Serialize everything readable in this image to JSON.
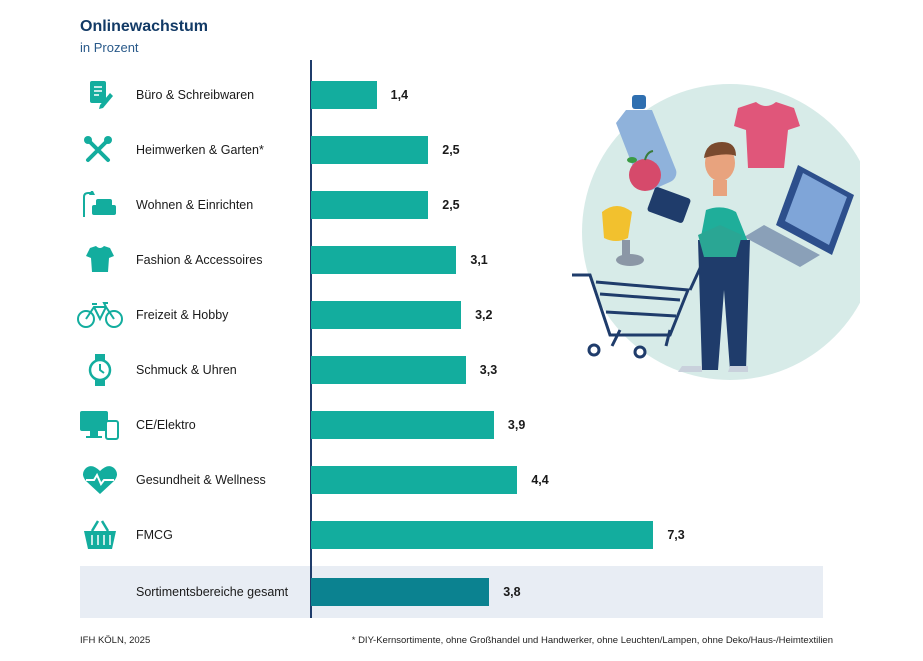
{
  "title": "Onlinewachstum",
  "subtitle": "in Prozent",
  "source": "IFH KÖLN, 2025",
  "footnote": "* DIY-Kernsortimente, ohne Großhandel und Handwerker, ohne Leuchten/Lampen, ohne Deko/Haus-/Heimtextilien",
  "colors": {
    "bar": "#13ad9e",
    "total_bar": "#0b8290",
    "title": "#123a66"
  },
  "chart_data": {
    "type": "bar",
    "orientation": "horizontal",
    "title": "Onlinewachstum",
    "subtitle": "in Prozent",
    "categories": [
      "Büro & Schreibwaren",
      "Heimwerken & Garten*",
      "Wohnen & Einrichten",
      "Fashion & Accessoires",
      "Freizeit & Hobby",
      "Schmuck & Uhren",
      "CE/Elektro",
      "Gesundheit & Wellness",
      "FMCG",
      "Sortimentsbereiche gesamt"
    ],
    "values": [
      1.4,
      2.5,
      2.5,
      3.1,
      3.2,
      3.3,
      3.9,
      4.4,
      7.3,
      3.8
    ],
    "value_labels": [
      "1,4",
      "2,5",
      "2,5",
      "3,1",
      "3,2",
      "3,3",
      "3,9",
      "4,4",
      "7,3",
      "3,8"
    ],
    "icons": [
      "document-pen-icon",
      "tools-icon",
      "sofa-lamp-icon",
      "tshirt-icon",
      "bicycle-icon",
      "watch-icon",
      "computer-tablet-icon",
      "heart-pulse-icon",
      "basket-icon",
      ""
    ],
    "xlim": [
      0,
      8
    ],
    "grid": false
  }
}
